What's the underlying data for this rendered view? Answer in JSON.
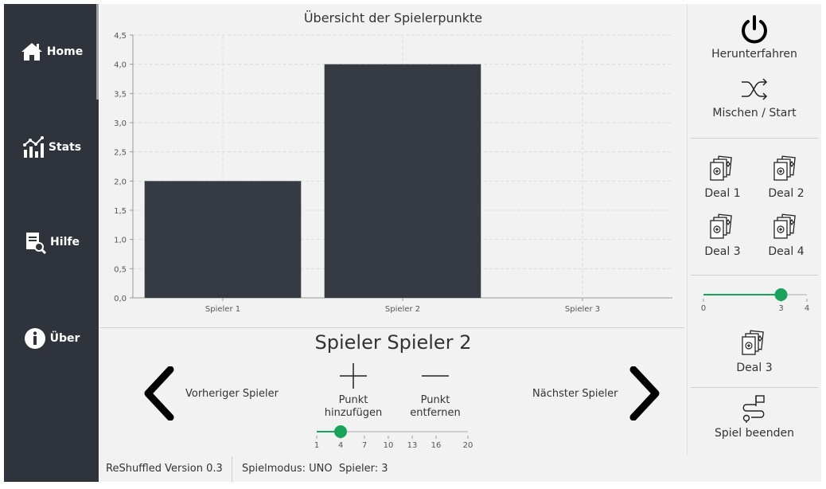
{
  "sidebar": {
    "items": [
      {
        "label": "Home",
        "icon": "home-icon"
      },
      {
        "label": "Stats",
        "icon": "stats-icon"
      },
      {
        "label": "Hilfe",
        "icon": "help-document-icon"
      },
      {
        "label": "Über",
        "icon": "info-icon"
      }
    ]
  },
  "chart_data": {
    "type": "bar",
    "title": "Übersicht der Spielerpunkte",
    "categories": [
      "Spieler 1",
      "Spieler 2",
      "Spieler 3"
    ],
    "values": [
      2,
      4,
      0
    ],
    "ylim": [
      0,
      4.5
    ],
    "yticks": [
      "0,0",
      "0,5",
      "1,0",
      "1,5",
      "2,0",
      "2,5",
      "3,0",
      "3,5",
      "4,0",
      "4,5"
    ],
    "grid": true,
    "bar_color": "#353a43"
  },
  "player": {
    "title": "Spieler Spieler 2",
    "prev_label": "Vorheriger Spieler",
    "next_label": "Nächster Spieler",
    "add_label_1": "Punkt",
    "add_label_2": "hinzufügen",
    "remove_label_1": "Punkt",
    "remove_label_2": "entfernen",
    "points_slider": {
      "value": 4,
      "min": 1,
      "max": 20,
      "ticks": [
        "1",
        "4",
        "7",
        "10",
        "13",
        "16",
        "20"
      ]
    }
  },
  "right": {
    "shutdown_label": "Herunterfahren",
    "shuffle_label": "Mischen / Start",
    "deals": [
      "Deal 1",
      "Deal 2",
      "Deal 3",
      "Deal 4"
    ],
    "deal_slider": {
      "value": 3,
      "min": 0,
      "max": 4,
      "ticks": [
        "0",
        "3",
        "4"
      ]
    },
    "current_deal_label": "Deal 3",
    "end_label": "Spiel beenden"
  },
  "status": {
    "version": "ReShuffled Version 0.3",
    "mode": "Spielmodus: UNO  Spieler: 3"
  },
  "colors": {
    "sidebar": "#2f343c",
    "accent": "#1aa35c",
    "bar": "#353a43"
  }
}
